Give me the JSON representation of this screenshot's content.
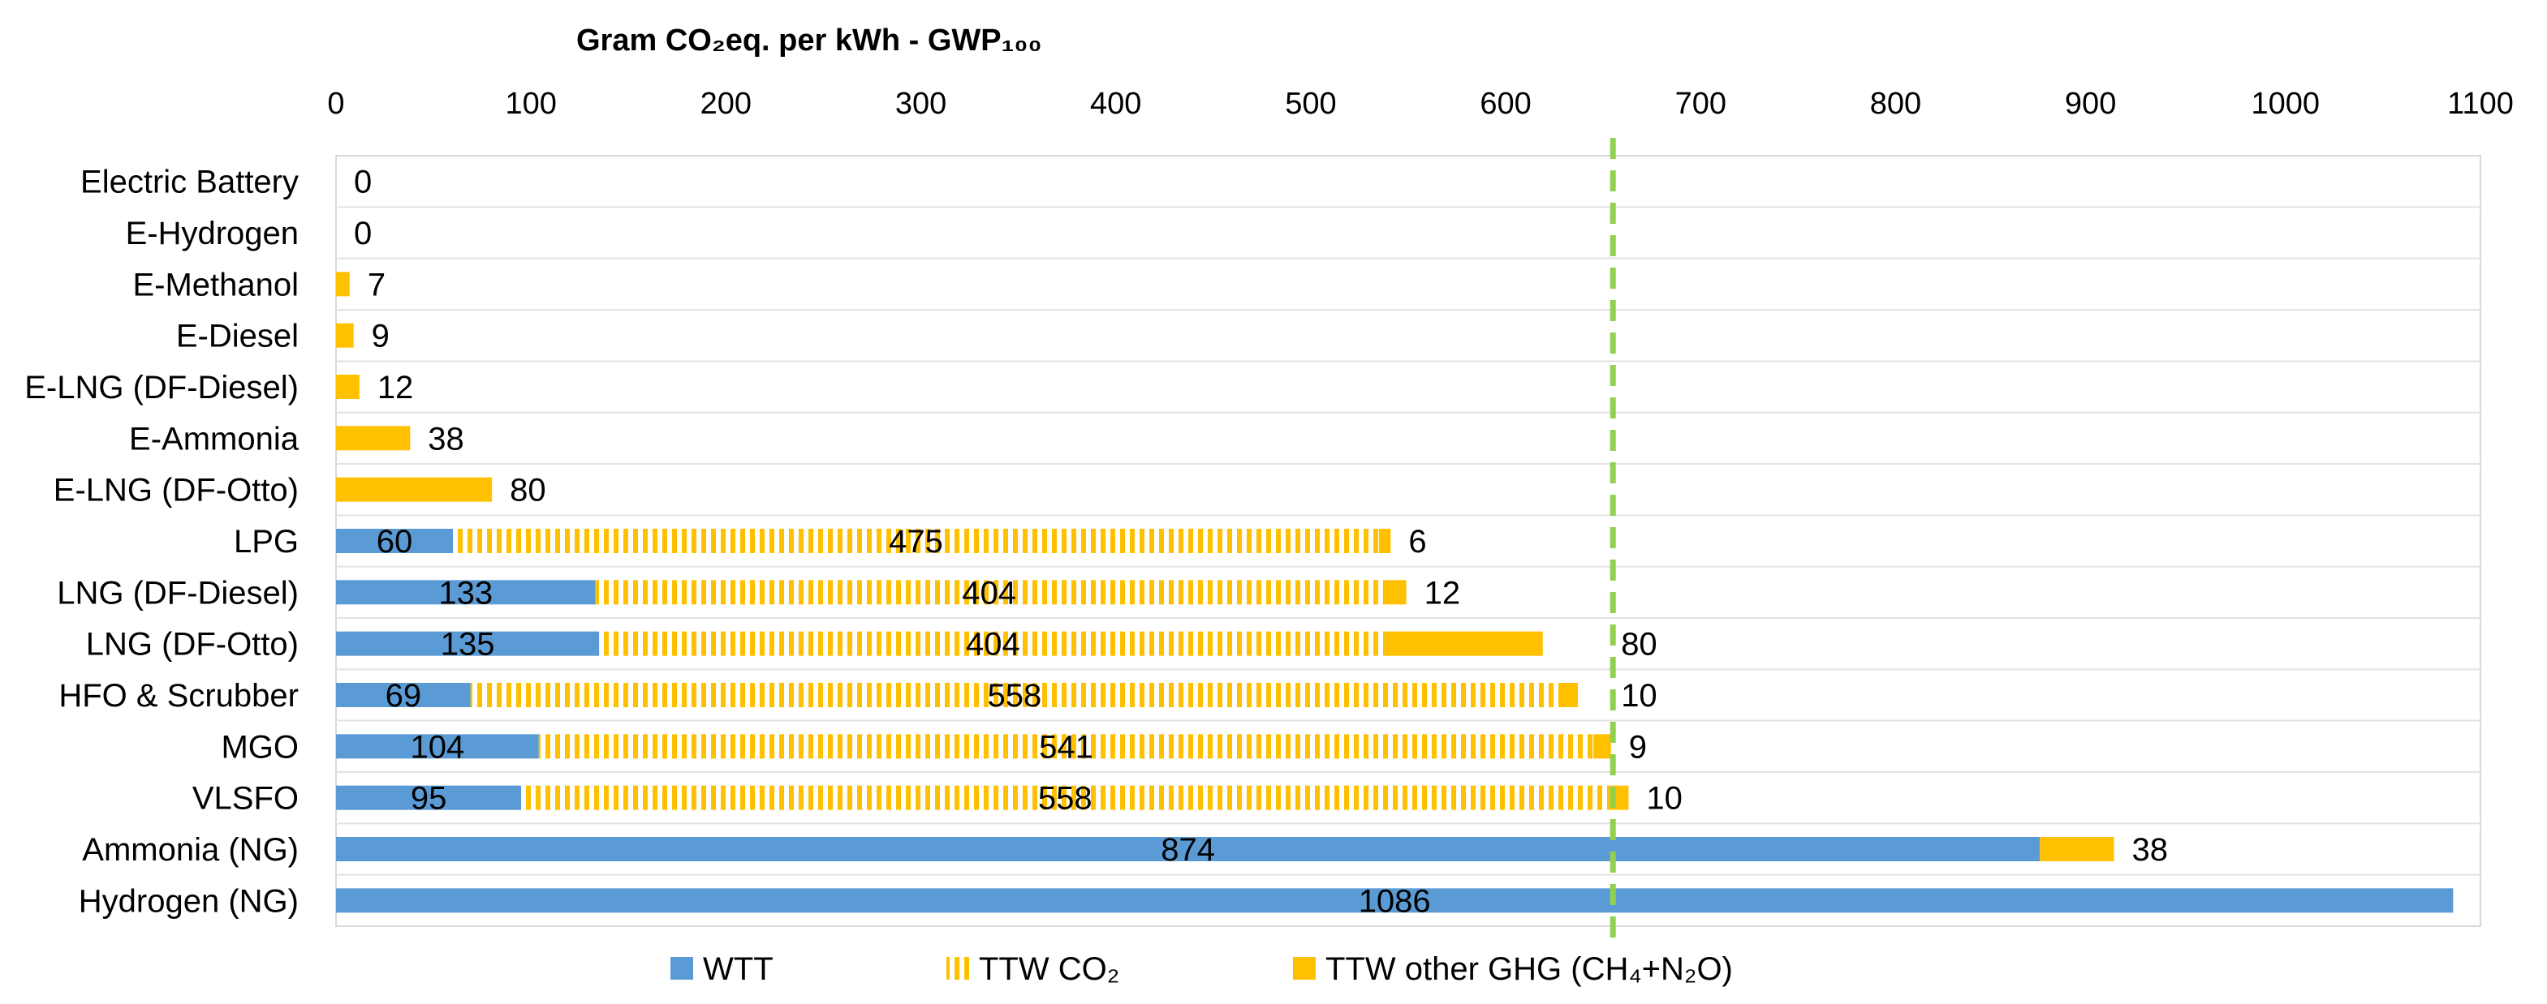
{
  "chart_data": {
    "type": "bar",
    "orientation": "horizontal",
    "stacked": true,
    "title": "Gram CO₂eq. per kWh - GWP₁₀₀",
    "xlabel": "",
    "ylabel": "",
    "xlim": [
      0,
      1100
    ],
    "xticks": [
      0,
      100,
      200,
      300,
      400,
      500,
      600,
      700,
      800,
      900,
      1000,
      1100
    ],
    "x_axis_position": "top",
    "grid": "horizontal separators",
    "legend_position": "bottom",
    "categories": [
      "Electric Battery",
      "E-Hydrogen",
      "E-Methanol",
      "E-Diesel",
      "E-LNG (DF-Diesel)",
      "E-Ammonia",
      "E-LNG (DF-Otto)",
      "LPG",
      "LNG (DF-Diesel)",
      "LNG (DF-Otto)",
      "HFO & Scrubber",
      "MGO",
      "VLSFO",
      "Ammonia (NG)",
      "Hydrogen (NG)"
    ],
    "series": [
      {
        "name": "WTT",
        "color": "#5B9BD5",
        "pattern": "solid",
        "values": [
          0,
          0,
          0,
          0,
          0,
          0,
          0,
          60,
          133,
          135,
          69,
          104,
          95,
          874,
          1086
        ]
      },
      {
        "name": "TTW CO₂",
        "color": "#FFC000",
        "pattern": "vertical-stripes",
        "values": [
          0,
          0,
          0,
          0,
          0,
          0,
          0,
          475,
          404,
          404,
          558,
          541,
          558,
          0,
          0
        ]
      },
      {
        "name": "TTW other GHG (CH₄+N₂O)",
        "color": "#FFC000",
        "pattern": "solid",
        "values": [
          0,
          0,
          7,
          9,
          12,
          38,
          80,
          6,
          12,
          80,
          10,
          9,
          10,
          38,
          0
        ]
      }
    ],
    "data_labels": [
      [
        null,
        null,
        null,
        null,
        null,
        null,
        null,
        "60",
        "133",
        "135",
        "69",
        "104",
        "95",
        "874",
        "1086"
      ],
      [
        null,
        null,
        null,
        null,
        null,
        null,
        null,
        "475",
        "404",
        "404",
        "558",
        "541",
        "558",
        null,
        null
      ],
      [
        "0",
        "0",
        "7",
        "9",
        "12",
        "38",
        "80",
        "6",
        "12",
        "80",
        "10",
        "9",
        "10",
        "38",
        null
      ]
    ],
    "reference_line": {
      "x": 655,
      "color": "#92D050",
      "style": "dashed"
    }
  }
}
